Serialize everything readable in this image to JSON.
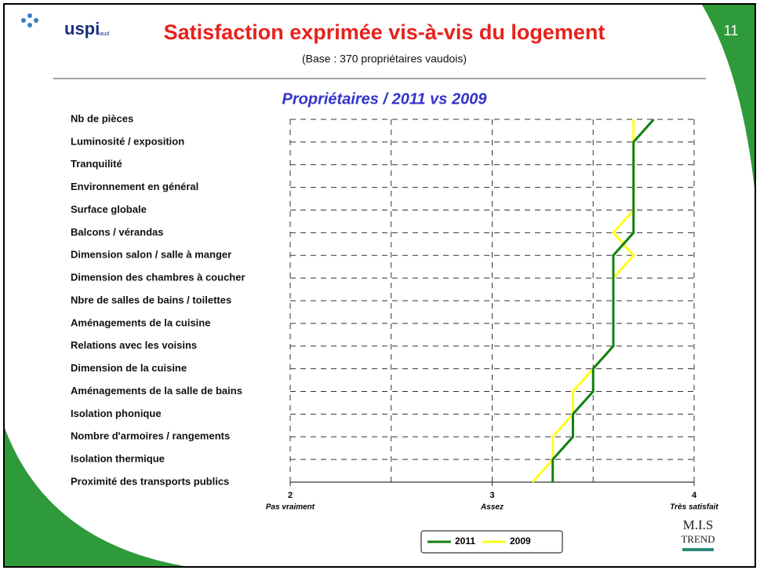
{
  "slide": {
    "title": "Satisfaction exprimée vis-à-vis du logement",
    "subtitle": "(Base : 370 propriétaires vaudois)",
    "page_number": "11",
    "logo_left": "uspi",
    "logo_left_sub": "vaud",
    "logo_right_top": "M.I.S",
    "logo_right_bottom": "TREND"
  },
  "chart_data": {
    "type": "line",
    "orientation": "horizontal",
    "title": "Propriétaires / 2011 vs 2009",
    "categories": [
      "Nb de pièces",
      "Luminosité / exposition",
      "Tranquilité",
      "Environnement en général",
      "Surface globale",
      "Balcons / vérandas",
      "Dimension salon / salle à manger",
      "Dimension des chambres à coucher",
      "Nbre de salles de bains / toilettes",
      "Aménagements de la cuisine",
      "Relations avec les voisins",
      "Dimension de la cuisine",
      "Aménagements de la salle de bains",
      "Isolation phonique",
      "Nombre d'armoires / rangements",
      "Isolation thermique",
      "Proximité des transports publics"
    ],
    "series": [
      {
        "name": "2011",
        "color": "#108010",
        "values": [
          3.8,
          3.7,
          3.7,
          3.7,
          3.7,
          3.7,
          3.6,
          3.6,
          3.6,
          3.6,
          3.6,
          3.5,
          3.5,
          3.4,
          3.4,
          3.3,
          3.3
        ]
      },
      {
        "name": "2009",
        "color": "#ffff20",
        "values": [
          3.7,
          3.7,
          3.7,
          3.7,
          3.7,
          3.6,
          3.7,
          3.6,
          3.6,
          3.6,
          3.6,
          3.5,
          3.4,
          3.4,
          3.3,
          3.3,
          3.2
        ]
      }
    ],
    "xlim": [
      2,
      4
    ],
    "xticks": [
      2,
      3,
      4
    ],
    "xtick_sublabels": [
      "Pas vraiment",
      "Assez",
      "Très satisfait"
    ],
    "xminor": [
      2.5,
      3.5
    ],
    "grid": true
  }
}
